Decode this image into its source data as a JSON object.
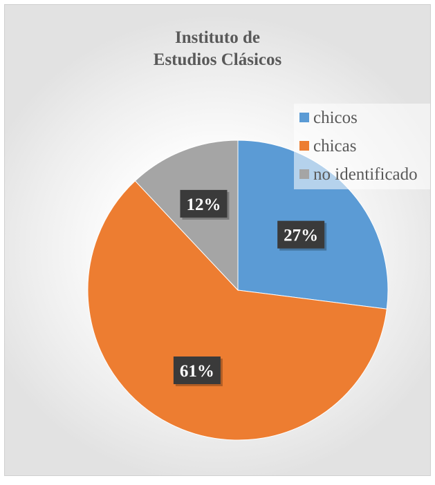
{
  "chart_data": {
    "type": "pie",
    "title_lines": [
      "Instituto de",
      "Estudios Clásicos"
    ],
    "categories": [
      "chicos",
      "chicas",
      "no identificado"
    ],
    "values": [
      27,
      61,
      12
    ],
    "labels": [
      "27%",
      "61%",
      "12%"
    ],
    "colors": [
      "#5b9bd5",
      "#ed7d31",
      "#a5a5a5"
    ],
    "legend_position": "top-right"
  }
}
